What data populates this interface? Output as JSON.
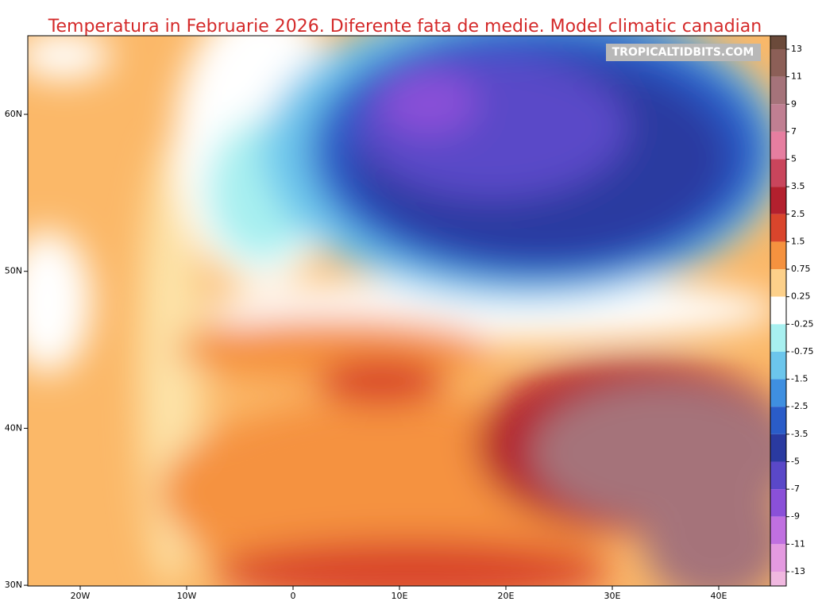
{
  "header": {
    "title": "Temperatura in Februarie 2026. Diferente fata de medie. Model climatic canadian",
    "watermark": "TROPICALTIDBITS.COM"
  },
  "map": {
    "lat_labels": [
      "60N",
      "50N",
      "40N",
      "30N"
    ],
    "lon_labels": [
      "20W",
      "10W",
      "0",
      "10E",
      "20E",
      "30E",
      "40E"
    ]
  },
  "colorbar": {
    "levels": [
      13,
      11,
      9,
      7,
      5,
      3.5,
      2.5,
      1.5,
      0.75,
      0.25,
      -0.25,
      -0.75,
      -1.5,
      -2.5,
      -3.5,
      -5,
      -7,
      -9,
      -11,
      -13
    ],
    "colors": [
      "#6b4a3a",
      "#8c5f57",
      "#a5737a",
      "#c07f92",
      "#e67ea0",
      "#c9455c",
      "#b3202e",
      "#d9452c",
      "#f5923f",
      "#fcd08a",
      "#ffffff",
      "#a8f0f0",
      "#6cc6ec",
      "#3f8fe0",
      "#2a5cc8",
      "#2a3aa0",
      "#5a48c8",
      "#8a50d8",
      "#c070e0",
      "#e49ae0",
      "#f0b8e0"
    ]
  }
}
